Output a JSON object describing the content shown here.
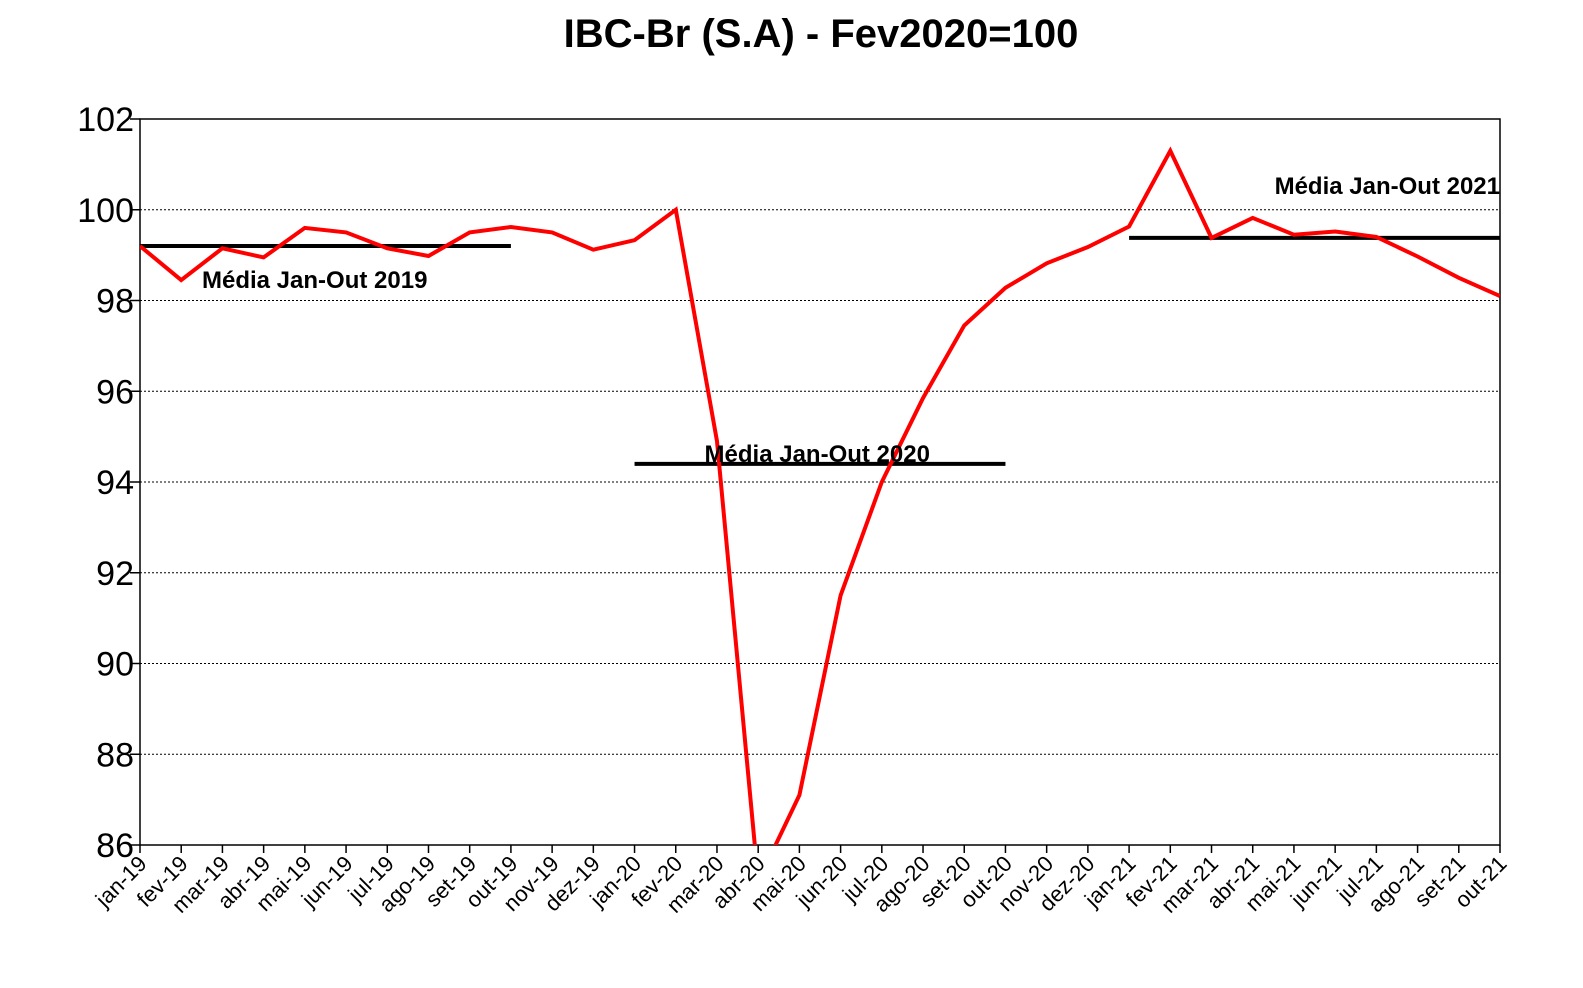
{
  "chart_data": {
    "type": "line",
    "title": "IBC-Br (S.A) - Fev2020=100",
    "xlabel": "",
    "ylabel": "",
    "ylim": [
      86,
      102
    ],
    "yticks": [
      86,
      88,
      90,
      92,
      94,
      96,
      98,
      100,
      102
    ],
    "grid": true,
    "legend": "none",
    "categories": [
      "jan-19",
      "fev-19",
      "mar-19",
      "abr-19",
      "mai-19",
      "jun-19",
      "jul-19",
      "ago-19",
      "set-19",
      "out-19",
      "nov-19",
      "dez-19",
      "jan-20",
      "fev-20",
      "mar-20",
      "abr-20",
      "mai-20",
      "jun-20",
      "jul-20",
      "ago-20",
      "set-20",
      "out-20",
      "nov-20",
      "dez-20",
      "jan-21",
      "fev-21",
      "mar-21",
      "abr-21",
      "mai-21",
      "jun-21",
      "jul-21",
      "ago-21",
      "set-21",
      "out-21"
    ],
    "series": [
      {
        "name": "",
        "color": "#ff0000",
        "values": [
          99.2,
          98.45,
          99.15,
          98.95,
          99.6,
          99.5,
          99.15,
          98.98,
          99.5,
          99.62,
          99.5,
          99.12,
          99.33,
          100.0,
          94.9,
          85.2,
          87.1,
          91.5,
          94.0,
          95.85,
          97.45,
          98.28,
          98.82,
          99.18,
          99.63,
          101.3,
          99.38,
          99.82,
          99.45,
          99.52,
          99.4,
          98.97,
          98.5,
          98.1
        ]
      }
    ],
    "averages": [
      {
        "label": "Média Jan-Out 2019",
        "value": 99.2,
        "from": "jan-19",
        "to": "out-19",
        "color": "#000000"
      },
      {
        "label": "Média Jan-Out 2020",
        "value": 94.4,
        "from": "jan-20",
        "to": "out-20",
        "color": "#000000"
      },
      {
        "label": "Média Jan-Out 2021",
        "value": 99.38,
        "from": "jan-21",
        "to": "out-21",
        "color": "#000000"
      }
    ]
  }
}
